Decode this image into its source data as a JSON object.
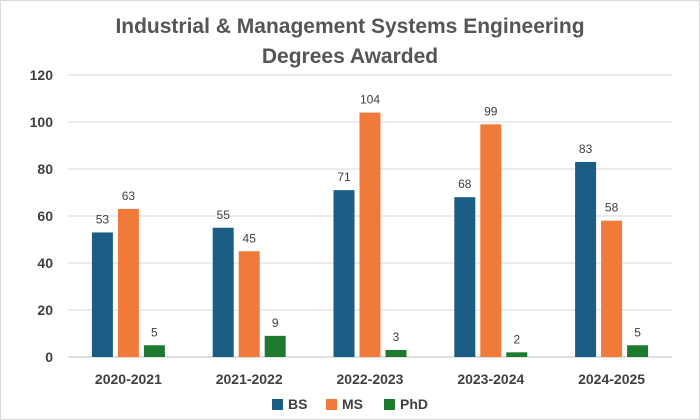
{
  "chart_data": {
    "type": "bar",
    "title_lines": [
      "Industrial & Management Systems Engineering",
      "Degrees Awarded"
    ],
    "categories": [
      "2020-2021",
      "2021-2022",
      "2022-2023",
      "2023-2024",
      "2024-2025"
    ],
    "series": [
      {
        "name": "BS",
        "color": "#1a5e85",
        "values": [
          53,
          55,
          71,
          68,
          83
        ]
      },
      {
        "name": "MS",
        "color": "#ef7a3a",
        "values": [
          63,
          45,
          104,
          99,
          58
        ]
      },
      {
        "name": "PhD",
        "color": "#1e7a2e",
        "values": [
          5,
          9,
          3,
          2,
          5
        ]
      }
    ],
    "yticks": [
      "0",
      "20",
      "40",
      "60",
      "80",
      "100",
      "120"
    ],
    "ylim": [
      0,
      120
    ],
    "grid": true,
    "legend": "bottom",
    "xlabel": "",
    "ylabel": ""
  }
}
